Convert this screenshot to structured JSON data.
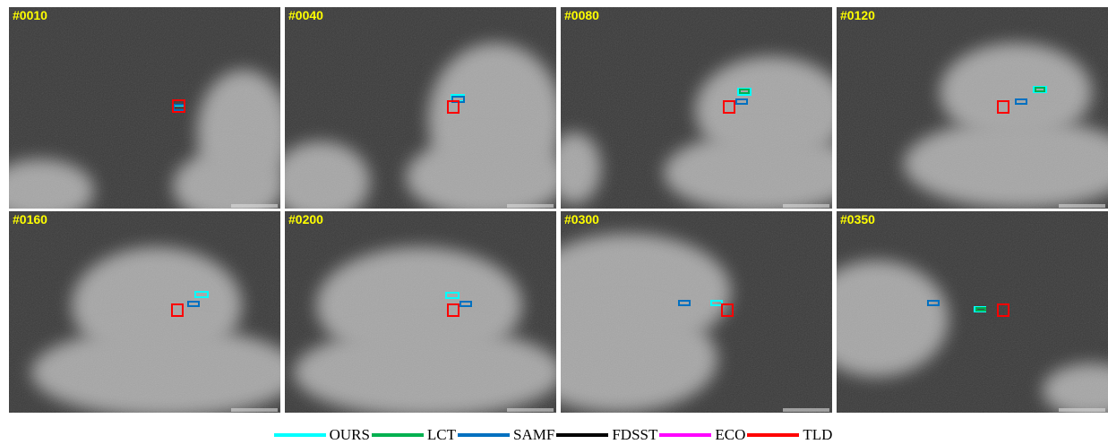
{
  "panels": [
    {
      "label": "#0010"
    },
    {
      "label": "#0040"
    },
    {
      "label": "#0080"
    },
    {
      "label": "#0120"
    },
    {
      "label": "#0160"
    },
    {
      "label": "#0200"
    },
    {
      "label": "#0300"
    },
    {
      "label": "#0350"
    }
  ],
  "legend": [
    {
      "name": "OURS",
      "color": "#00ffff"
    },
    {
      "name": "LCT",
      "color": "#00b050"
    },
    {
      "name": "SAMF",
      "color": "#0070c0"
    },
    {
      "name": "FDSST",
      "color": "#000000"
    },
    {
      "name": "ECO",
      "color": "#ff00ff"
    },
    {
      "name": "TLD",
      "color": "#ff0000"
    }
  ]
}
